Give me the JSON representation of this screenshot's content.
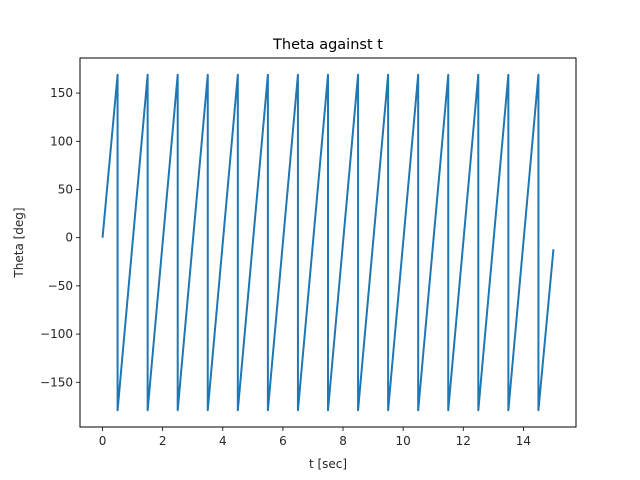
{
  "chart_data": {
    "type": "line",
    "title": "Theta against t",
    "xlabel": "t [sec]",
    "ylabel": "Theta [deg]",
    "xlim": [
      -0.75,
      15.75
    ],
    "ylim": [
      -196.4,
      186.4
    ],
    "xticks": [
      0,
      2,
      4,
      6,
      8,
      10,
      12,
      14
    ],
    "yticks": [
      -150,
      -100,
      -50,
      0,
      50,
      100,
      150
    ],
    "xtick_labels": [
      "0",
      "2",
      "4",
      "6",
      "8",
      "10",
      "12",
      "14"
    ],
    "ytick_labels": [
      "−150",
      "−100",
      "−50",
      "0",
      "50",
      "100",
      "150"
    ],
    "grid": false,
    "series": [
      {
        "color": "#1f77b4",
        "x": [
          0,
          0.5,
          0.5,
          1.5,
          1.5,
          2.5,
          2.5,
          3.5,
          3.5,
          4.5,
          4.5,
          5.5,
          5.5,
          6.5,
          6.5,
          7.5,
          7.5,
          8.5,
          8.5,
          9.5,
          9.5,
          10.5,
          10.5,
          11.5,
          11.5,
          12.5,
          12.5,
          13.5,
          13.5,
          14.5,
          14.5,
          15.0
        ],
        "y": [
          0,
          169,
          -179,
          169,
          -179,
          169,
          -179,
          169,
          -179,
          169,
          -179,
          169,
          -179,
          169,
          -179,
          169,
          -179,
          169,
          -179,
          169,
          -179,
          169,
          -179,
          169,
          -179,
          169,
          -179,
          169,
          -179,
          169,
          -179,
          -12
        ]
      }
    ]
  }
}
